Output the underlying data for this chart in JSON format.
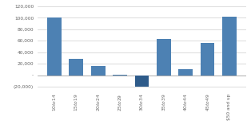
{
  "categories": [
    "$10 to $14",
    "$15 to $19",
    "$20 to $24",
    "$25 to $29",
    "$30 to $34",
    "$35 to $39",
    "$40 to $44",
    "$45 to $49",
    "$50 and up"
  ],
  "values": [
    101000,
    28000,
    16000,
    1500,
    -20000,
    63000,
    11000,
    56000,
    102000
  ],
  "bar_color_default": "#4d81b3",
  "bar_color_highlight": "#2e5b8a",
  "highlight_index": 4,
  "ylim_min": -25000,
  "ylim_max": 122000,
  "yticks": [
    -20000,
    0,
    20000,
    40000,
    60000,
    80000,
    100000,
    120000
  ],
  "background_color": "#ffffff",
  "plot_bg_color": "#ffffff",
  "grid_color": "#cccccc",
  "tick_label_fontsize": 4.2,
  "tick_color": "#666666"
}
